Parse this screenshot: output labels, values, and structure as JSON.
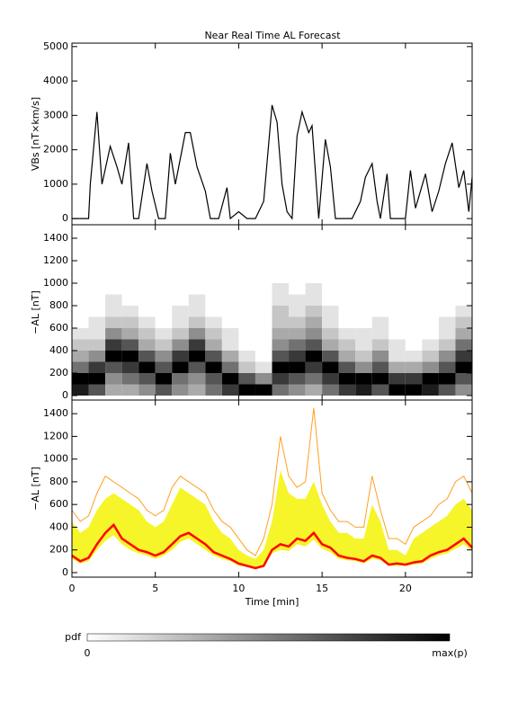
{
  "chart_data": [
    {
      "type": "line",
      "title": "Near Real Time AL Forecast",
      "ylabel": "VBs [nT×km/s]",
      "color": "#000000",
      "x": [
        0,
        1.0,
        1.1,
        1.5,
        1.8,
        2.3,
        2.7,
        3.0,
        3.4,
        3.7,
        4.0,
        4.5,
        4.8,
        5.2,
        5.6,
        5.9,
        6.2,
        6.8,
        7.1,
        7.5,
        8.0,
        8.3,
        8.8,
        9.3,
        9.5,
        10.0,
        10.5,
        11.0,
        11.5,
        12.0,
        12.3,
        12.6,
        12.9,
        13.2,
        13.5,
        13.8,
        14.2,
        14.4,
        14.8,
        15.2,
        15.5,
        15.8,
        16.8,
        17.3,
        17.6,
        18.0,
        18.3,
        18.5,
        18.9,
        19.1,
        20.0,
        20.3,
        20.6,
        21.2,
        21.6,
        22.0,
        22.4,
        22.8,
        23.2,
        23.5,
        23.8,
        24.0
      ],
      "values": [
        0,
        0,
        1000,
        3100,
        1000,
        2100,
        1500,
        1000,
        2200,
        0,
        0,
        1600,
        800,
        0,
        0,
        1900,
        1000,
        2500,
        2500,
        1500,
        800,
        0,
        0,
        900,
        0,
        200,
        0,
        0,
        500,
        3300,
        2800,
        1000,
        200,
        0,
        2400,
        3100,
        2500,
        2700,
        0,
        2300,
        1500,
        0,
        0,
        500,
        1200,
        1600,
        500,
        0,
        1300,
        0,
        0,
        1400,
        300,
        1300,
        200,
        800,
        1600,
        2200,
        900,
        1400,
        200,
        1200
      ],
      "xlim": [
        0,
        24
      ],
      "ylim": [
        -180,
        5100
      ],
      "yticks": [
        0,
        1000,
        2000,
        3000,
        4000,
        5000
      ]
    },
    {
      "type": "heatmap",
      "ylabel": "−AL [nT]",
      "xbins": [
        0,
        1,
        2,
        3,
        4,
        5,
        6,
        7,
        8,
        9,
        10,
        11,
        12,
        13,
        14,
        15,
        16,
        17,
        18,
        19,
        20,
        21,
        22,
        23,
        24
      ],
      "ybins": [
        0,
        100,
        200,
        300,
        400,
        500,
        600,
        700,
        800,
        900,
        1000
      ],
      "z": [
        [
          8,
          9,
          5,
          3,
          2,
          1,
          0,
          0,
          0,
          0
        ],
        [
          6,
          9,
          7,
          4,
          2,
          1,
          1,
          0,
          0,
          0
        ],
        [
          3,
          4,
          6,
          9,
          7,
          4,
          2,
          1,
          1,
          0
        ],
        [
          3,
          5,
          7,
          9,
          6,
          3,
          2,
          1,
          0,
          0
        ],
        [
          4,
          6,
          9,
          6,
          3,
          2,
          1,
          0,
          0,
          0
        ],
        [
          6,
          9,
          6,
          4,
          2,
          1,
          0,
          0,
          0,
          0
        ],
        [
          4,
          5,
          9,
          7,
          4,
          2,
          1,
          1,
          0,
          0
        ],
        [
          3,
          4,
          6,
          9,
          7,
          4,
          2,
          1,
          1,
          0
        ],
        [
          5,
          6,
          9,
          6,
          3,
          2,
          1,
          0,
          0,
          0
        ],
        [
          7,
          9,
          5,
          3,
          1,
          1,
          0,
          0,
          0,
          0
        ],
        [
          9,
          6,
          2,
          1,
          0,
          0,
          0,
          0,
          0,
          0
        ],
        [
          9,
          4,
          1,
          0,
          0,
          0,
          0,
          0,
          0,
          0
        ],
        [
          5,
          7,
          9,
          6,
          4,
          3,
          2,
          2,
          1,
          1
        ],
        [
          4,
          6,
          9,
          7,
          5,
          3,
          2,
          1,
          1,
          0
        ],
        [
          3,
          5,
          7,
          9,
          6,
          4,
          3,
          2,
          1,
          1
        ],
        [
          5,
          7,
          9,
          6,
          3,
          2,
          1,
          1,
          0,
          0
        ],
        [
          7,
          9,
          6,
          3,
          2,
          1,
          0,
          0,
          0,
          0
        ],
        [
          8,
          9,
          4,
          2,
          1,
          1,
          0,
          0,
          0,
          0
        ],
        [
          6,
          9,
          6,
          4,
          2,
          1,
          1,
          0,
          0,
          0
        ],
        [
          9,
          7,
          3,
          1,
          1,
          0,
          0,
          0,
          0,
          0
        ],
        [
          9,
          7,
          3,
          1,
          0,
          0,
          0,
          0,
          0,
          0
        ],
        [
          8,
          9,
          4,
          2,
          1,
          0,
          0,
          0,
          0,
          0
        ],
        [
          6,
          9,
          6,
          4,
          2,
          1,
          1,
          0,
          0,
          0
        ],
        [
          4,
          6,
          9,
          7,
          5,
          3,
          2,
          1,
          0,
          0
        ]
      ],
      "xlim": [
        0,
        24
      ],
      "ylim": [
        -40,
        1520
      ],
      "yticks": [
        0,
        200,
        400,
        600,
        800,
        1000,
        1200,
        1400
      ],
      "colorbar": {
        "label": "pdf",
        "min_label": "0",
        "max_label": "max(p)"
      }
    },
    {
      "type": "band",
      "ylabel": "−AL [nT]",
      "xlabel": "Time [min]",
      "x": [
        0,
        0.5,
        1,
        1.5,
        2,
        2.5,
        3,
        3.5,
        4,
        4.5,
        5,
        5.5,
        6,
        6.5,
        7,
        7.5,
        8,
        8.5,
        9,
        9.5,
        10,
        10.5,
        11,
        11.5,
        12,
        12.5,
        13,
        13.5,
        14,
        14.5,
        15,
        15.5,
        16,
        16.5,
        17,
        17.5,
        18,
        18.5,
        19,
        19.5,
        20,
        20.5,
        21,
        21.5,
        22,
        22.5,
        23,
        23.5,
        24
      ],
      "band": {
        "color": "#f5f52a",
        "lower": [
          120,
          80,
          100,
          200,
          280,
          330,
          250,
          200,
          170,
          150,
          120,
          150,
          200,
          270,
          300,
          250,
          200,
          150,
          120,
          100,
          60,
          50,
          30,
          50,
          170,
          200,
          190,
          250,
          230,
          290,
          210,
          180,
          120,
          110,
          100,
          80,
          120,
          110,
          60,
          60,
          60,
          70,
          80,
          120,
          150,
          170,
          210,
          250,
          190
        ],
        "upper": [
          450,
          350,
          400,
          550,
          650,
          700,
          650,
          600,
          550,
          450,
          400,
          450,
          600,
          750,
          700,
          650,
          600,
          450,
          350,
          300,
          200,
          150,
          120,
          200,
          450,
          900,
          700,
          650,
          650,
          800,
          600,
          450,
          350,
          350,
          300,
          300,
          600,
          450,
          200,
          200,
          150,
          300,
          350,
          400,
          450,
          500,
          600,
          650,
          550
        ]
      },
      "series": [
        {
          "color": "#ffa020",
          "width": 1,
          "values": [
            550,
            450,
            500,
            700,
            850,
            800,
            750,
            700,
            650,
            550,
            500,
            550,
            750,
            850,
            800,
            750,
            700,
            550,
            450,
            400,
            300,
            200,
            150,
            300,
            600,
            1200,
            850,
            750,
            800,
            1450,
            700,
            550,
            450,
            450,
            400,
            400,
            850,
            550,
            300,
            300,
            250,
            400,
            450,
            500,
            600,
            650,
            800,
            850,
            700
          ]
        },
        {
          "color": "#ff0000",
          "width": 2.5,
          "values": [
            150,
            100,
            130,
            250,
            350,
            420,
            300,
            250,
            200,
            180,
            150,
            180,
            250,
            320,
            350,
            300,
            250,
            180,
            150,
            120,
            80,
            60,
            40,
            60,
            200,
            250,
            230,
            300,
            280,
            350,
            250,
            220,
            150,
            130,
            120,
            100,
            150,
            130,
            70,
            80,
            70,
            90,
            100,
            150,
            180,
            200,
            250,
            300,
            220
          ]
        }
      ],
      "xlim": [
        0,
        24
      ],
      "ylim": [
        -40,
        1520
      ],
      "xticks": [
        0,
        5,
        10,
        15,
        20
      ],
      "yticks": [
        0,
        200,
        400,
        600,
        800,
        1000,
        1200,
        1400
      ]
    }
  ]
}
